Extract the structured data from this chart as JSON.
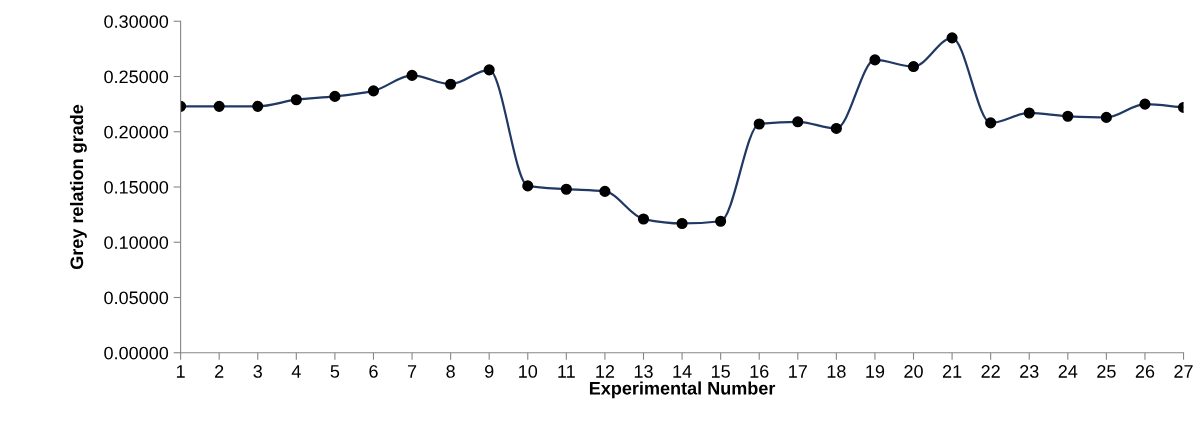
{
  "chart_data": {
    "type": "line",
    "xlabel": "Experimental Number",
    "ylabel": "Grey relation grade",
    "categories": [
      "1",
      "2",
      "3",
      "4",
      "5",
      "6",
      "7",
      "8",
      "9",
      "10",
      "11",
      "12",
      "13",
      "14",
      "15",
      "16",
      "17",
      "18",
      "19",
      "20",
      "21",
      "22",
      "23",
      "24",
      "25",
      "26",
      "27"
    ],
    "series": [
      {
        "color": "#1f3864",
        "values": [
          0.223,
          0.223,
          0.223,
          0.229,
          0.232,
          0.237,
          0.251,
          0.243,
          0.256,
          0.151,
          0.148,
          0.146,
          0.121,
          0.117,
          0.119,
          0.207,
          0.209,
          0.203,
          0.265,
          0.259,
          0.285,
          0.208,
          0.217,
          0.214,
          0.213,
          0.225,
          0.222
        ]
      }
    ],
    "ylim": [
      0,
      0.3
    ],
    "yticks": [
      {
        "value": 0,
        "label": "0.00000"
      },
      {
        "value": 0.05,
        "label": "0.05000"
      },
      {
        "value": 0.1,
        "label": "0.10000"
      },
      {
        "value": 0.15,
        "label": "0.15000"
      },
      {
        "value": 0.2,
        "label": "0.20000"
      },
      {
        "value": 0.25,
        "label": "0.25000"
      },
      {
        "value": 0.3,
        "label": "0.30000"
      }
    ],
    "marker": "circle",
    "line_style": "solid",
    "grid": false
  }
}
